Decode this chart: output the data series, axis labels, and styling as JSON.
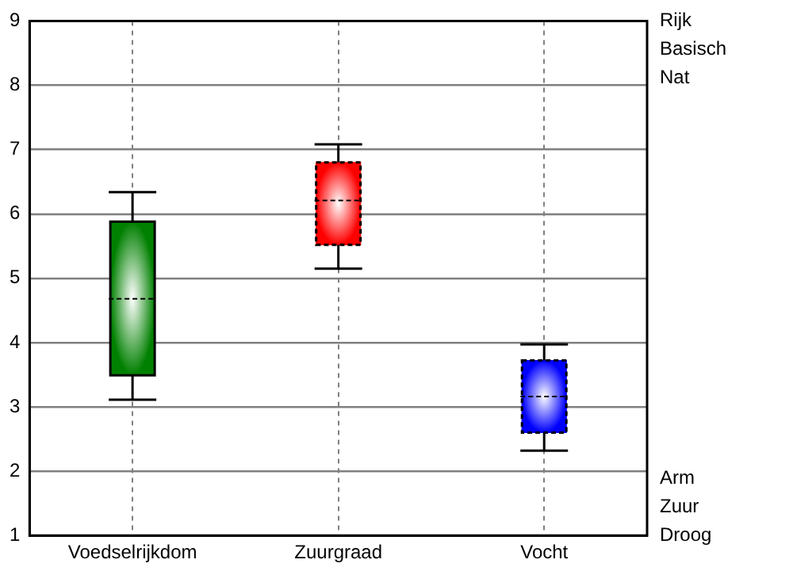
{
  "chart_data": {
    "type": "box",
    "categories": [
      "Voedselrijkdom",
      "Zuurgraad",
      "Vocht"
    ],
    "boxes": [
      {
        "low": 3.11,
        "q1": 3.49,
        "median": 4.68,
        "q3": 5.88,
        "high": 6.34
      },
      {
        "low": 5.15,
        "q1": 5.52,
        "median": 6.21,
        "q3": 6.8,
        "high": 7.08
      },
      {
        "low": 2.32,
        "q1": 2.6,
        "median": 3.16,
        "q3": 3.72,
        "high": 3.97
      }
    ],
    "colors": [
      "#008000",
      "#ff0000",
      "#0000ff"
    ],
    "ylim": [
      1,
      9
    ],
    "yticks": [
      1,
      2,
      3,
      4,
      5,
      6,
      7,
      8,
      9
    ],
    "grid": true,
    "legend": false,
    "annotations": [
      "Rijk",
      "Basisch",
      "Nat",
      "Arm",
      "Zuur",
      "Droog"
    ]
  }
}
